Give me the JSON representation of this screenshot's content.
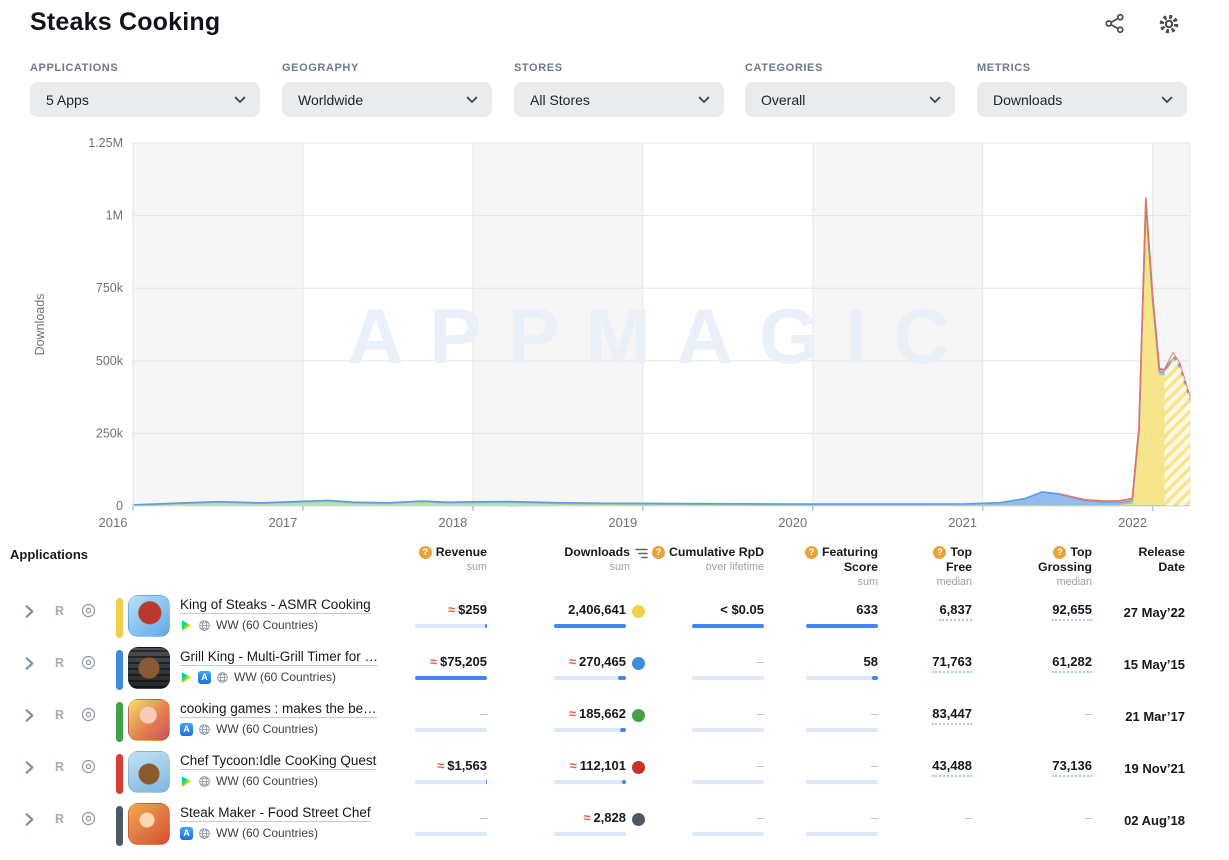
{
  "header": {
    "title": "Steaks Cooking"
  },
  "filters": [
    {
      "label": "APPLICATIONS",
      "value": "5 Apps"
    },
    {
      "label": "GEOGRAPHY",
      "value": "Worldwide"
    },
    {
      "label": "STORES",
      "value": "All Stores"
    },
    {
      "label": "CATEGORIES",
      "value": "Overall"
    },
    {
      "label": "METRICS",
      "value": "Downloads"
    }
  ],
  "chart_data": {
    "type": "area",
    "stacked": true,
    "title": "",
    "xlabel": "",
    "ylabel": "Downloads",
    "watermark": "APPMAGIC",
    "ylim": [
      0,
      1250000
    ],
    "xlim": [
      2016,
      2022.22
    ],
    "x_ticks": [
      2016,
      2017,
      2018,
      2019,
      2020,
      2021,
      2022
    ],
    "y_ticks": [
      {
        "v": 0,
        "label": "0"
      },
      {
        "v": 250000,
        "label": "250k"
      },
      {
        "v": 500000,
        "label": "500k"
      },
      {
        "v": 750000,
        "label": "750k"
      },
      {
        "v": 1000000,
        "label": "1M"
      },
      {
        "v": 1250000,
        "label": "1.25M"
      }
    ],
    "incomplete_from": 2022.07,
    "x": [
      2016.0,
      2016.25,
      2016.5,
      2016.75,
      2017.0,
      2017.15,
      2017.3,
      2017.5,
      2017.7,
      2017.85,
      2018.0,
      2018.2,
      2018.5,
      2018.8,
      2019.2,
      2019.6,
      2020.0,
      2020.5,
      2020.9,
      2021.1,
      2021.25,
      2021.35,
      2021.45,
      2021.6,
      2021.7,
      2021.8,
      2021.88,
      2021.92,
      2021.96,
      2022.0,
      2022.04,
      2022.07,
      2022.12,
      2022.16,
      2022.22
    ],
    "series": [
      {
        "name": "Steak Maker - Food Street Chef",
        "color": "#becdd7",
        "stroke": "#9fb3c1",
        "values": [
          0,
          0,
          0,
          0,
          0,
          0,
          0,
          0,
          0,
          0,
          0,
          0,
          900,
          1000,
          1000,
          1000,
          1000,
          1000,
          1000,
          1000,
          1000,
          1000,
          1000,
          1000,
          1000,
          1000,
          1000,
          1000,
          1000,
          1000,
          1000,
          1000,
          1000,
          1000,
          1000
        ]
      },
      {
        "name": "cooking games : makes the best recipes",
        "color": "#b8ddb0",
        "stroke": "#8fca89",
        "values": [
          2000,
          8000,
          13000,
          9000,
          14000,
          17000,
          11000,
          9000,
          15000,
          11000,
          12000,
          13000,
          8000,
          6000,
          5000,
          4000,
          3000,
          3000,
          2500,
          2500,
          2500,
          2500,
          2500,
          2500,
          2500,
          2500,
          2500,
          2500,
          2500,
          2500,
          2500,
          2500,
          2500,
          2500,
          2500
        ]
      },
      {
        "name": "King of Steaks - ASMR Cooking",
        "color": "#f7e58b",
        "stroke": "#ebd05e",
        "values": [
          0,
          0,
          0,
          0,
          0,
          0,
          0,
          0,
          0,
          0,
          0,
          0,
          0,
          0,
          0,
          0,
          0,
          0,
          0,
          0,
          0,
          0,
          0,
          0,
          0,
          0,
          6000,
          250000,
          1030000,
          700000,
          450000,
          448000,
          505000,
          470000,
          358000
        ]
      },
      {
        "name": "Grill King - Multi-Grill Timer",
        "color": "#92bcec",
        "stroke": "#5e9ce4",
        "values": [
          1800,
          1800,
          1800,
          1800,
          2200,
          2200,
          2200,
          2200,
          2200,
          2200,
          2500,
          2500,
          2500,
          2500,
          2500,
          2500,
          2500,
          2800,
          3500,
          8000,
          22000,
          45000,
          38000,
          16000,
          11000,
          9000,
          10000,
          12000,
          12000,
          11000,
          10000,
          10000,
          10000,
          9000,
          8000
        ]
      },
      {
        "name": "Chef Tycoon:Idle CooKing Quest",
        "color": "#efa89c",
        "stroke": "#e0756a",
        "values": [
          0,
          0,
          0,
          0,
          0,
          0,
          0,
          0,
          0,
          0,
          0,
          0,
          0,
          0,
          0,
          0,
          0,
          0,
          0,
          0,
          0,
          0,
          0,
          2500,
          3500,
          5000,
          6000,
          9000,
          15000,
          12000,
          9000,
          8000,
          8000,
          7000,
          6000
        ]
      }
    ]
  },
  "table": {
    "section_label": "Applications",
    "controls": {
      "related_label": "R"
    },
    "columns": [
      {
        "label1": "Revenue",
        "label2": "",
        "sub": "sum"
      },
      {
        "label1": "Downloads",
        "label2": "",
        "sub": "sum"
      },
      {
        "label1": "Cumulative RpD",
        "label2": "",
        "sub": "over lifetime"
      },
      {
        "label1": "Featuring",
        "label2": "Score",
        "sub": "sum"
      },
      {
        "label1": "Top",
        "label2": "Free",
        "sub": "median"
      },
      {
        "label1": "Top",
        "label2": "Grossing",
        "sub": "median"
      },
      {
        "label1": "Release",
        "label2": "Date",
        "sub": ""
      }
    ],
    "rows": [
      {
        "name": "King of Steaks - ASMR Cooking",
        "color": "#f2ce4a",
        "dot": "#f2ce4a",
        "platforms": [
          "google-play",
          "globe"
        ],
        "geo": "WW (60 Countries)",
        "revenue_approx": "≈",
        "revenue_value": "$259",
        "revenue_fill": "3%",
        "downloads_approx": "",
        "downloads_value": "2,406,641",
        "downloads_fill": "100%",
        "rpd_value": "< $0.05",
        "rpd_fill": "100%",
        "featuring_value": "633",
        "featuring_fill": "100%",
        "top_free": "6,837",
        "top_grossing": "92,655",
        "release_date": "27 May’22"
      },
      {
        "name": "Grill King - Multi-Grill Timer for …",
        "color": "#3f8cde",
        "dot": "#3f8cde",
        "platforms": [
          "google-play",
          "app-store",
          "globe"
        ],
        "geo": "WW (60 Countries)",
        "revenue_approx": "≈",
        "revenue_value": "$75,205",
        "revenue_fill": "100%",
        "downloads_approx": "≈",
        "downloads_value": "270,465",
        "downloads_fill": "11%",
        "rpd_value": "–",
        "rpd_fill": "0%",
        "featuring_value": "58",
        "featuring_fill": "9%",
        "top_free": "71,763",
        "top_grossing": "61,282",
        "release_date": "15 May’15"
      },
      {
        "name": "cooking games : makes the be…",
        "color": "#43a047",
        "dot": "#43a047",
        "platforms": [
          "app-store",
          "globe"
        ],
        "geo": "WW (60 Countries)",
        "revenue_approx": "",
        "revenue_value": "–",
        "revenue_fill": "0%",
        "downloads_approx": "≈",
        "downloads_value": "185,662",
        "downloads_fill": "8%",
        "rpd_value": "–",
        "rpd_fill": "0%",
        "featuring_value": "–",
        "featuring_fill": "0%",
        "top_free": "83,447",
        "top_grossing": "–",
        "release_date": "21 Mar’17"
      },
      {
        "name": "Chef Tycoon:Idle CooKing Quest",
        "color": "#d93b30",
        "dot": "#c5332b",
        "platforms": [
          "google-play",
          "globe"
        ],
        "geo": "WW (60 Countries)",
        "revenue_approx": "≈",
        "revenue_value": "$1,563",
        "revenue_fill": "2%",
        "downloads_approx": "≈",
        "downloads_value": "112,101",
        "downloads_fill": "5%",
        "rpd_value": "–",
        "rpd_fill": "0%",
        "featuring_value": "–",
        "featuring_fill": "0%",
        "top_free": "43,488",
        "top_grossing": "73,136",
        "release_date": "19 Nov’21"
      },
      {
        "name": "Steak Maker - Food Street Chef",
        "color": "#4d5a66",
        "dot": "#4d5a66",
        "platforms": [
          "app-store",
          "globe"
        ],
        "geo": "WW (60 Countries)",
        "revenue_approx": "",
        "revenue_value": "–",
        "revenue_fill": "0%",
        "downloads_approx": "≈",
        "downloads_value": "2,828",
        "downloads_fill": "0%",
        "rpd_value": "–",
        "rpd_fill": "0%",
        "featuring_value": "–",
        "featuring_fill": "0%",
        "top_free": "–",
        "top_grossing": "–",
        "release_date": "02 Aug’18"
      }
    ]
  }
}
